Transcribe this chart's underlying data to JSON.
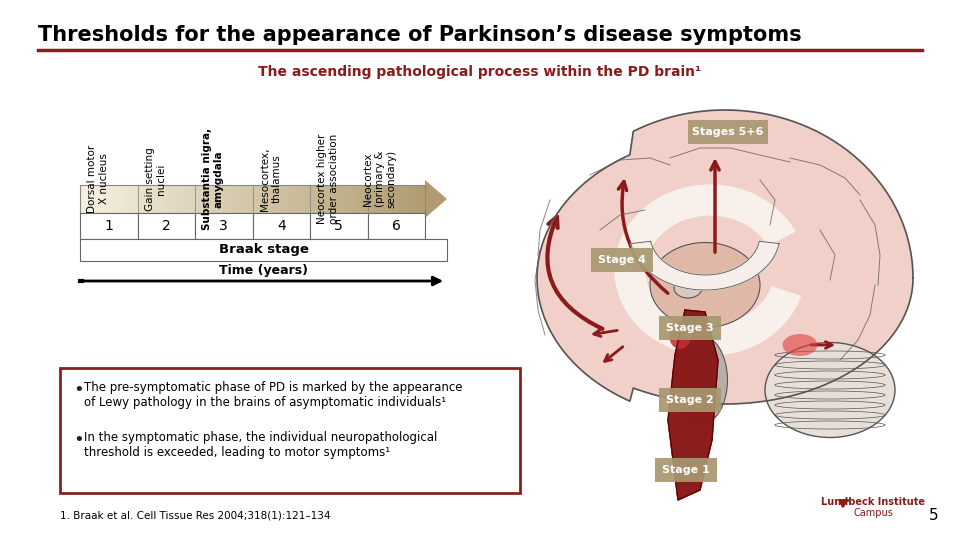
{
  "title": "Thresholds for the appearance of Parkinson’s disease symptoms",
  "subtitle": "The ascending pathological process within the PD brain¹",
  "bg_color": "#ffffff",
  "title_color": "#000000",
  "subtitle_color": "#8b1a1a",
  "title_line_color": "#8b1a1a",
  "column_labels": [
    "Dorsal motor\nX nucleus",
    "Gain setting\nnuclei",
    "Substantia nigra,\namygdala",
    "Mesocortex,\nthalamus",
    "Neocortex higher\norder association",
    "Neocortex\n(primary &\nsecondary)"
  ],
  "stage_numbers": [
    "1",
    "2",
    "3",
    "4",
    "5",
    "6"
  ],
  "braak_label": "Braak stage",
  "time_label": "Time (years)",
  "bullet1_line1": "The pre-symptomatic phase of PD is marked by the appearance",
  "bullet1_line2": "of Lewy pathology in the brains of asymptomatic individuals¹",
  "bullet2_line1": "In the symptomatic phase, the individual neuropathological",
  "bullet2_line2": "threshold is exceeded, leading to motor symptoms¹",
  "footnote": "1. Braak et al. Cell Tissue Res 2004;318(1):121–134",
  "page_num": "5",
  "box_border_color": "#8b2020",
  "stage_label_bg": "#a89870",
  "stage_label_text": "#ffffff",
  "red_color": "#8b1a1a",
  "brain_outline": "#555555",
  "brain_pink_light": "#f0d0c8",
  "brain_pink_mid": "#e0b8a8",
  "brain_pink_dark": "#d09080",
  "brain_gray": "#c0b8b0",
  "brain_white": "#f5f0ec"
}
